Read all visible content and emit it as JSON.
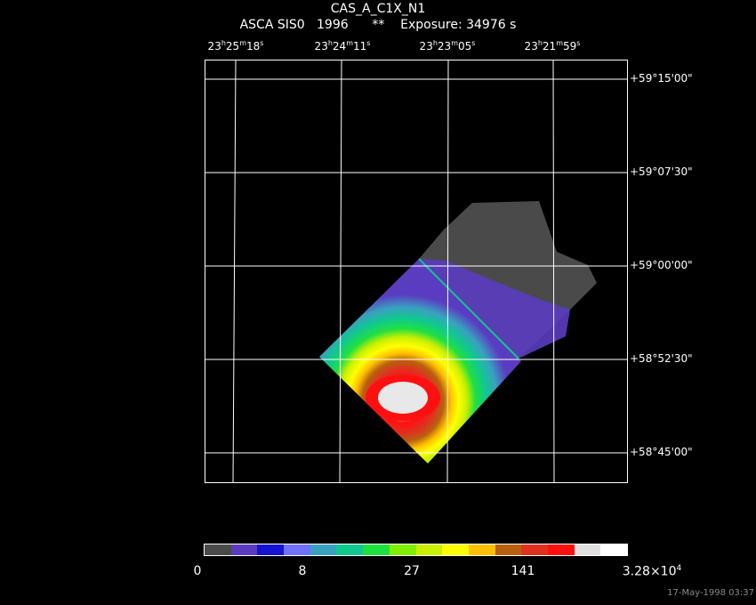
{
  "header": {
    "title": "CAS_A_C1X_N1",
    "subtitle": "ASCA SIS0   1996      **    Exposure: 34976 s"
  },
  "ra_labels": [
    {
      "h": "23",
      "m": "25",
      "s": "18"
    },
    {
      "h": "23",
      "m": "24",
      "s": "11"
    },
    {
      "h": "23",
      "m": "23",
      "s": "05"
    },
    {
      "h": "23",
      "m": "21",
      "s": "59"
    }
  ],
  "dec_labels": [
    "+59°15'00\"",
    "+59°07'30\"",
    "+59°00'00\"",
    "+58°52'30\"",
    "+58°45'00\""
  ],
  "colorbar": {
    "colors": [
      "#4a4a4a",
      "#5a3cc0",
      "#1414d0",
      "#7070ff",
      "#3aa0c0",
      "#10c890",
      "#20e040",
      "#80f000",
      "#c8f000",
      "#ffff00",
      "#ffc000",
      "#b86010",
      "#e03020",
      "#ff1010",
      "#e0e0e0",
      "#ffffff"
    ],
    "labels": [
      "0",
      "8",
      "27",
      "141",
      "3.28×10"
    ],
    "label_exponent": "4"
  },
  "timestamp": "17-May-1998 03:37"
}
